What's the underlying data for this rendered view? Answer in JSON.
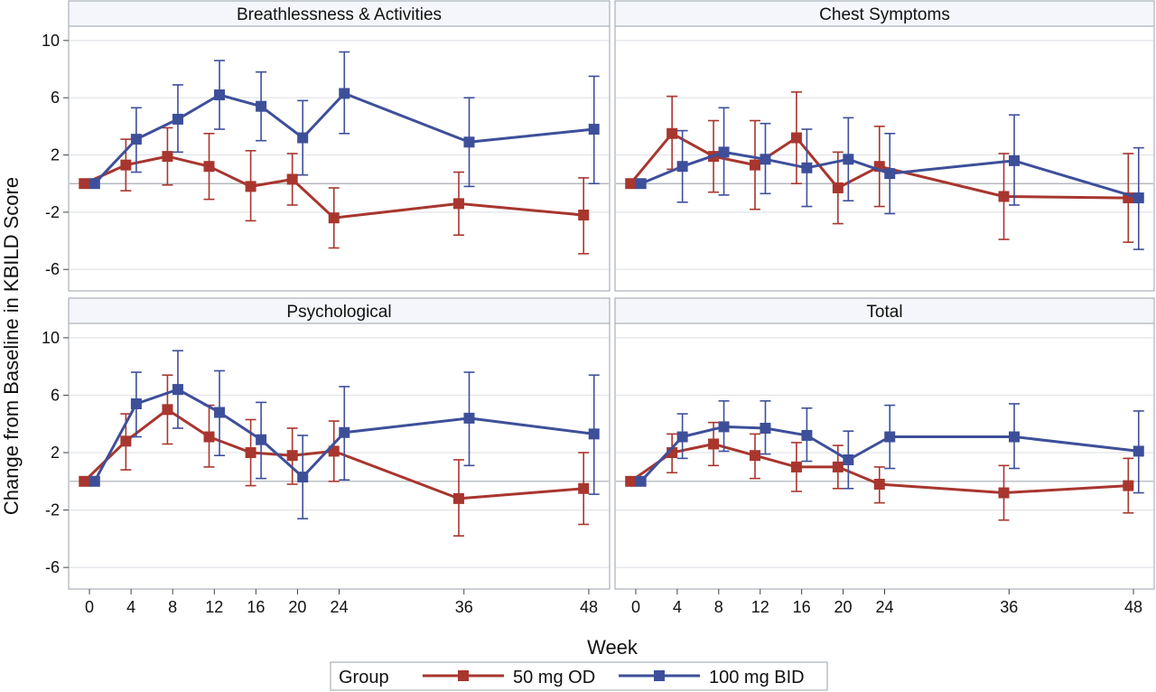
{
  "chart_data": {
    "type": "line",
    "xlabel": "Week",
    "ylabel": "Change from Baseline in KBILD Score",
    "xlim": [
      -2,
      50
    ],
    "ylim": [
      -7.5,
      11
    ],
    "x_ticks": [
      0,
      4,
      8,
      12,
      16,
      20,
      24,
      36,
      48
    ],
    "y_ticks": [
      -6,
      -2,
      2,
      6,
      10
    ],
    "grid": true,
    "reference_line_y": 0,
    "legend": {
      "title": "Group",
      "position": "bottom",
      "entries": [
        "50 mg OD",
        "100 mg BID"
      ]
    },
    "series_colors": {
      "50 mg OD": "#a8362e",
      "100 mg BID": "#3e4f9a"
    },
    "series_offsets_weeks": {
      "50 mg OD": -0.5,
      "100 mg BID": 0.5
    },
    "panels": [
      {
        "title": "Breathlessness & Activities",
        "series": [
          {
            "name": "50 mg OD",
            "x": [
              0,
              4,
              8,
              12,
              16,
              20,
              24,
              36,
              48
            ],
            "y": [
              0,
              1.3,
              1.9,
              1.2,
              -0.2,
              0.3,
              -2.4,
              -1.4,
              -2.2
            ],
            "lower": [
              0,
              -0.5,
              -0.1,
              -1.1,
              -2.6,
              -1.5,
              -4.5,
              -3.6,
              -4.9
            ],
            "upper": [
              0,
              3.1,
              3.9,
              3.5,
              2.3,
              2.1,
              -0.3,
              0.8,
              0.4
            ]
          },
          {
            "name": "100 mg BID",
            "x": [
              0,
              4,
              8,
              12,
              16,
              20,
              24,
              36,
              48
            ],
            "y": [
              0,
              3.1,
              4.5,
              6.2,
              5.4,
              3.2,
              6.3,
              2.9,
              3.8
            ],
            "lower": [
              0,
              0.8,
              2.2,
              3.8,
              3.0,
              0.6,
              3.5,
              -0.2,
              0.0
            ],
            "upper": [
              0,
              5.3,
              6.9,
              8.6,
              7.8,
              5.8,
              9.2,
              6.0,
              7.5
            ]
          }
        ]
      },
      {
        "title": "Chest Symptoms",
        "series": [
          {
            "name": "50 mg OD",
            "x": [
              0,
              4,
              8,
              12,
              16,
              20,
              24,
              36,
              48
            ],
            "y": [
              0,
              3.5,
              1.9,
              1.3,
              3.2,
              -0.3,
              1.2,
              -0.9,
              -1.0
            ],
            "lower": [
              0,
              1.0,
              -0.6,
              -1.8,
              0.0,
              -2.8,
              -1.6,
              -3.9,
              -4.1
            ],
            "upper": [
              0,
              6.1,
              4.4,
              4.4,
              6.4,
              2.2,
              4.0,
              2.1,
              2.1
            ]
          },
          {
            "name": "100 mg BID",
            "x": [
              0,
              4,
              8,
              12,
              16,
              20,
              24,
              36,
              48
            ],
            "y": [
              0,
              1.2,
              2.2,
              1.7,
              1.1,
              1.7,
              0.7,
              1.6,
              -1.0
            ],
            "lower": [
              0,
              -1.3,
              -0.8,
              -0.7,
              -1.6,
              -1.2,
              -2.1,
              -1.5,
              -4.6
            ],
            "upper": [
              0,
              3.7,
              5.3,
              4.2,
              3.8,
              4.6,
              3.5,
              4.8,
              2.5
            ]
          }
        ]
      },
      {
        "title": "Psychological",
        "series": [
          {
            "name": "50 mg OD",
            "x": [
              0,
              4,
              8,
              12,
              16,
              20,
              24,
              36,
              48
            ],
            "y": [
              0,
              2.8,
              5.0,
              3.1,
              2.0,
              1.8,
              2.1,
              -1.2,
              -0.5
            ],
            "lower": [
              0,
              0.8,
              2.6,
              1.0,
              -0.3,
              -0.2,
              0.0,
              -3.8,
              -3.0
            ],
            "upper": [
              0,
              4.7,
              7.4,
              5.3,
              4.3,
              3.7,
              4.2,
              1.5,
              2.0
            ]
          },
          {
            "name": "100 mg BID",
            "x": [
              0,
              4,
              8,
              12,
              16,
              20,
              24,
              36,
              48
            ],
            "y": [
              0,
              5.4,
              6.4,
              4.8,
              2.9,
              0.3,
              3.4,
              4.4,
              3.3
            ],
            "lower": [
              0,
              3.1,
              3.7,
              1.8,
              0.2,
              -2.6,
              0.1,
              1.1,
              -0.9
            ],
            "upper": [
              0,
              7.6,
              9.1,
              7.7,
              5.5,
              3.2,
              6.6,
              7.6,
              7.4
            ]
          }
        ]
      },
      {
        "title": "Total",
        "series": [
          {
            "name": "50 mg OD",
            "x": [
              0,
              4,
              8,
              12,
              16,
              20,
              24,
              36,
              48
            ],
            "y": [
              0,
              2.0,
              2.6,
              1.8,
              1.0,
              1.0,
              -0.2,
              -0.8,
              -0.3
            ],
            "lower": [
              0,
              0.6,
              1.1,
              0.2,
              -0.7,
              -0.5,
              -1.5,
              -2.7,
              -2.2
            ],
            "upper": [
              0,
              3.3,
              4.1,
              3.3,
              2.7,
              2.5,
              1.0,
              1.1,
              1.6
            ]
          },
          {
            "name": "100 mg BID",
            "x": [
              0,
              4,
              8,
              12,
              16,
              20,
              24,
              36,
              48
            ],
            "y": [
              0,
              3.1,
              3.8,
              3.7,
              3.2,
              1.5,
              3.1,
              3.1,
              2.1
            ],
            "lower": [
              0,
              1.6,
              2.1,
              1.9,
              1.4,
              -0.5,
              0.9,
              0.9,
              -0.8
            ],
            "upper": [
              0,
              4.7,
              5.6,
              5.6,
              5.1,
              3.5,
              5.3,
              5.4,
              4.9
            ]
          }
        ]
      }
    ]
  }
}
